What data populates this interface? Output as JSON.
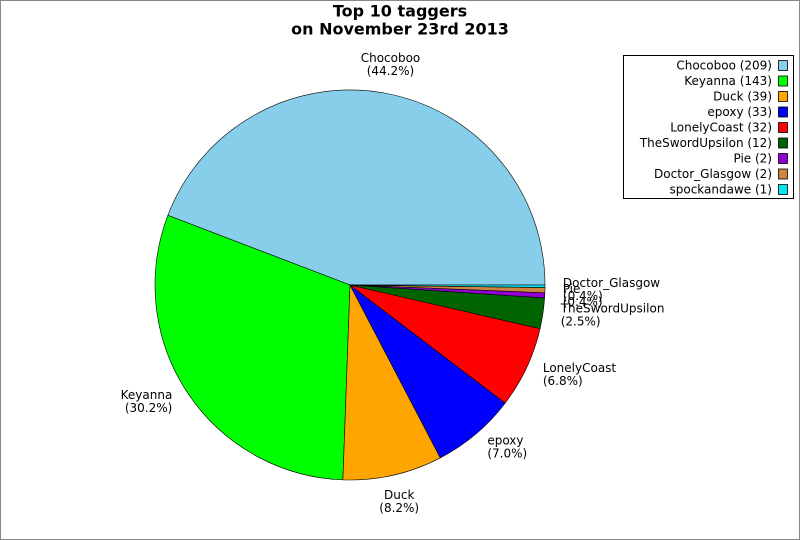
{
  "chart_data": {
    "type": "pie",
    "title": "Top 10 taggers",
    "subtitle": "on November 23rd 2013",
    "categories": [
      "Chocoboo",
      "Keyanna",
      "Duck",
      "epoxy",
      "LonelyCoast",
      "TheSwordUpsilon",
      "Pie",
      "Doctor_Glasgow",
      "spockandawe"
    ],
    "values": [
      209,
      143,
      39,
      33,
      32,
      12,
      2,
      2,
      1
    ],
    "legend_labels": [
      "Chocoboo (209)",
      "Keyanna (143)",
      "Duck (39)",
      "epoxy (33)",
      "LonelyCoast (32)",
      "TheSwordUpsilon (12)",
      "Pie (2)",
      "Doctor_Glasgow (2)",
      "spockandawe (1)"
    ],
    "percentages": [
      44.2,
      30.2,
      8.2,
      7.0,
      6.8,
      2.5,
      0.4,
      0.4,
      null
    ],
    "percentage_labels": [
      "(44.2%)",
      "(30.2%)",
      "(8.2%)",
      "(7.0%)",
      "(6.8%)",
      "(2.5%)",
      "(0.4%)",
      "(0.4%)",
      null
    ],
    "colors": [
      "#87ceeb",
      "#00ff00",
      "#ffa500",
      "#0000ff",
      "#ff0000",
      "#006400",
      "#9400d3",
      "#cd853f",
      "#00e5ee"
    ],
    "legend_position": "upper right"
  }
}
